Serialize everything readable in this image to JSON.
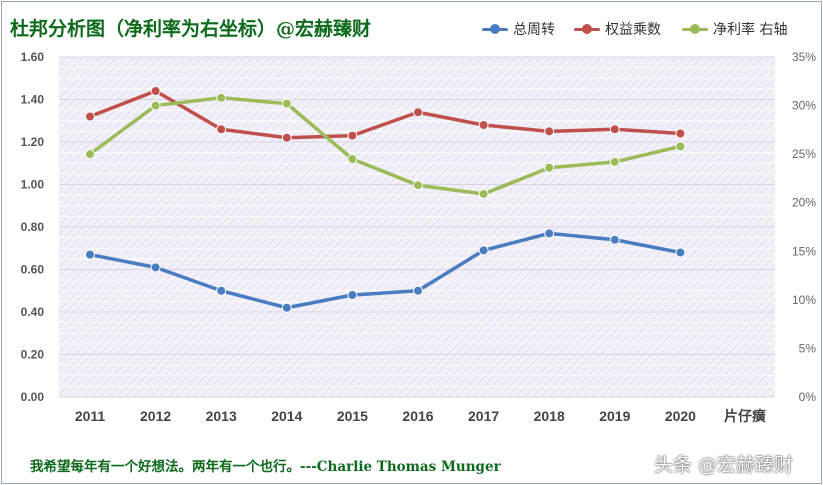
{
  "title": "杜邦分析图（净利率为右坐标）@宏赫臻财",
  "quote": "我希望每年有一个好想法。两年有一个也行。---Charlie Thomas  Munger",
  "watermark": "头条 @宏赫臻财",
  "x_extra_label": "片仔癀",
  "chart_data": {
    "type": "line",
    "categories": [
      "2011",
      "2012",
      "2013",
      "2014",
      "2015",
      "2016",
      "2017",
      "2018",
      "2019",
      "2020"
    ],
    "y_left": {
      "ticks": [
        "0.00",
        "0.20",
        "0.40",
        "0.60",
        "0.80",
        "1.00",
        "1.20",
        "1.40",
        "1.60"
      ],
      "range": [
        0,
        1.6
      ]
    },
    "y_right": {
      "ticks": [
        "0%",
        "5%",
        "10%",
        "15%",
        "20%",
        "25%",
        "30%",
        "35%"
      ],
      "range": [
        0,
        35
      ]
    },
    "grid": true,
    "legend_position": "top-right",
    "series": [
      {
        "name": "总周转",
        "axis": "left",
        "color": "#4a7cc1",
        "values": [
          0.67,
          0.61,
          0.5,
          0.42,
          0.48,
          0.5,
          0.69,
          0.77,
          0.74,
          0.68
        ]
      },
      {
        "name": "权益乘数",
        "axis": "left",
        "color": "#c0504d",
        "values": [
          1.32,
          1.44,
          1.26,
          1.22,
          1.23,
          1.34,
          1.28,
          1.25,
          1.26,
          1.24
        ]
      },
      {
        "name": "净利率 右轴",
        "axis": "right",
        "color": "#9bbb59",
        "values": [
          25.0,
          30.0,
          30.8,
          30.2,
          24.5,
          21.8,
          20.9,
          23.6,
          24.2,
          25.8
        ]
      }
    ]
  }
}
